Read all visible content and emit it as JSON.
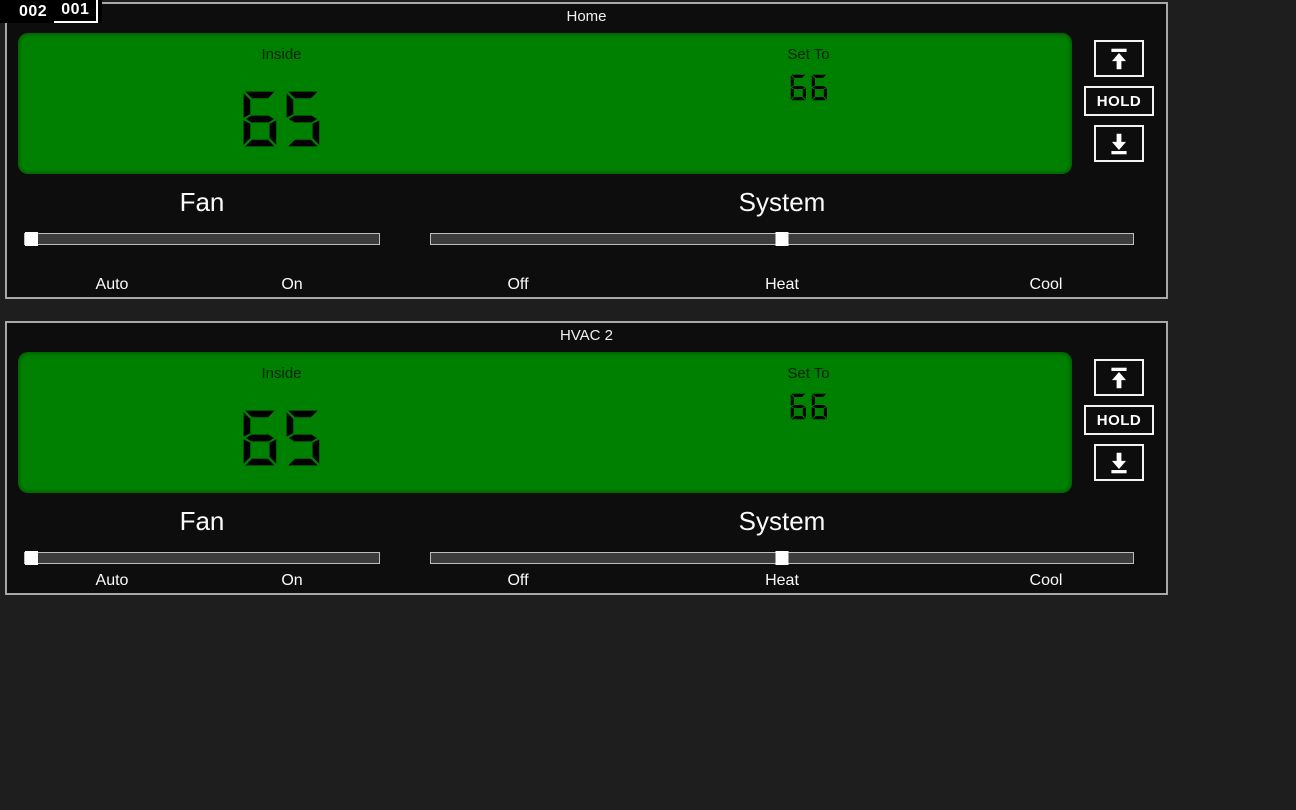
{
  "tabs": {
    "items": [
      {
        "label": "002",
        "selected": false
      },
      {
        "label": "001",
        "selected": true
      }
    ]
  },
  "panels": [
    {
      "title": "Home",
      "display": {
        "inside_label": "Inside",
        "inside_value": "65",
        "set_to_label": "Set To",
        "set_to_value": "66"
      },
      "buttons": {
        "up_icon": "arrow-up-to-bar",
        "hold_label": "HOLD",
        "down_icon": "arrow-down-to-bar"
      },
      "fan": {
        "label": "Fan",
        "options": [
          "Auto",
          "On"
        ],
        "value": "Auto"
      },
      "system": {
        "label": "System",
        "options": [
          "Off",
          "Heat",
          "Cool"
        ],
        "value": "Heat"
      }
    },
    {
      "title": "HVAC 2",
      "display": {
        "inside_label": "Inside",
        "inside_value": "65",
        "set_to_label": "Set To",
        "set_to_value": "66"
      },
      "buttons": {
        "up_icon": "arrow-up-to-bar",
        "hold_label": "HOLD",
        "down_icon": "arrow-down-to-bar"
      },
      "fan": {
        "label": "Fan",
        "options": [
          "Auto",
          "On"
        ],
        "value": "Auto"
      },
      "system": {
        "label": "System",
        "options": [
          "Off",
          "Heat",
          "Cool"
        ],
        "value": "Heat"
      }
    }
  ],
  "colors": {
    "lcd_green": "#008000",
    "digit_black": "#000000",
    "panel_border": "#a8a8a8",
    "background": "#1e1e1e"
  }
}
